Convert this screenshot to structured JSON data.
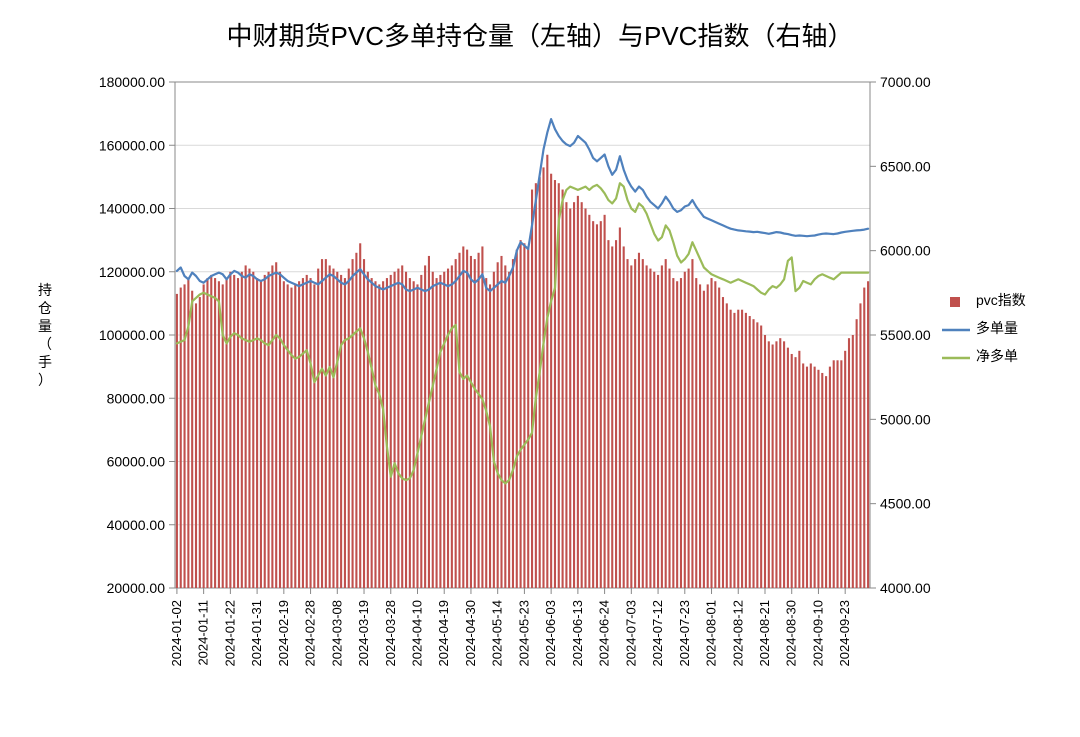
{
  "chart": {
    "type": "combo-bar-line-dual-axis",
    "title": "中财期货PVC多单持仓量（左轴）与PVC指数（右轴）",
    "title_fontsize": 26,
    "title_color": "#000000",
    "background_color": "#ffffff",
    "plot_bgcolor": "#ffffff",
    "grid_color": "#d9d9d9",
    "axis_color": "#888888",
    "tick_fontsize": 14,
    "xlabel_fontsize": 13,
    "left_axis": {
      "label": "持仓量（手）",
      "min": 20000,
      "max": 180000,
      "step": 20000,
      "decimals": 2
    },
    "right_axis": {
      "label": "",
      "min": 4000,
      "max": 7000,
      "step": 500,
      "decimals": 2
    },
    "x_tick_labels": [
      "2024-01-02",
      "2024-01-11",
      "2024-01-22",
      "2024-01-31",
      "2024-02-19",
      "2024-02-28",
      "2024-03-08",
      "2024-03-19",
      "2024-03-28",
      "2024-04-10",
      "2024-04-19",
      "2024-04-30",
      "2024-05-14",
      "2024-05-23",
      "2024-06-03",
      "2024-06-13",
      "2024-06-24",
      "2024-07-03",
      "2024-07-12",
      "2024-07-23",
      "2024-08-01",
      "2024-08-12",
      "2024-08-21",
      "2024-08-30",
      "2024-09-10",
      "2024-09-23"
    ],
    "x_tick_every": 7,
    "n_points": 182,
    "legend": {
      "items": [
        {
          "key": "pvc指数",
          "type": "bar",
          "color": "#c0504d"
        },
        {
          "key": "多单量",
          "type": "line",
          "color": "#4f81bd"
        },
        {
          "key": "净多单",
          "type": "line",
          "color": "#9bbb59"
        }
      ],
      "fontsize": 14
    },
    "series": {
      "pvc_index": {
        "name": "pvc指数",
        "type": "bar",
        "axis": "left",
        "color": "#c0504d",
        "bar_width_ratio": 0.55,
        "values": [
          113000,
          115000,
          116000,
          118000,
          114000,
          110000,
          112000,
          116000,
          118000,
          119000,
          118000,
          117000,
          116000,
          118000,
          120000,
          119000,
          118000,
          120000,
          122000,
          121000,
          120000,
          118000,
          117000,
          119000,
          120000,
          122000,
          123000,
          120000,
          117000,
          116000,
          115000,
          116000,
          117000,
          118000,
          119000,
          118000,
          116000,
          121000,
          124000,
          124000,
          122000,
          121000,
          120000,
          119000,
          118000,
          121000,
          124000,
          126000,
          129000,
          124000,
          120000,
          118000,
          117000,
          116000,
          117000,
          118000,
          119000,
          120000,
          121000,
          122000,
          120000,
          118000,
          117000,
          116000,
          119000,
          122000,
          125000,
          120000,
          118000,
          119000,
          120000,
          121000,
          122000,
          124000,
          126000,
          128000,
          127000,
          125000,
          124000,
          126000,
          128000,
          118000,
          116000,
          120000,
          123000,
          125000,
          122000,
          120000,
          124000,
          127000,
          130000,
          129000,
          128000,
          146000,
          148000,
          150000,
          153000,
          157000,
          151000,
          149000,
          148000,
          146000,
          142000,
          140000,
          142000,
          144000,
          142000,
          140000,
          138000,
          136000,
          135000,
          136000,
          138000,
          130000,
          128000,
          130000,
          134000,
          128000,
          124000,
          122000,
          124000,
          126000,
          124000,
          122000,
          121000,
          120000,
          119000,
          122000,
          124000,
          121000,
          118000,
          117000,
          118000,
          120000,
          121000,
          124000,
          118000,
          116000,
          114000,
          116000,
          118000,
          117000,
          115000,
          112000,
          110000,
          108000,
          107000,
          108000,
          108000,
          107000,
          106000,
          105000,
          104000,
          103000,
          100000,
          98000,
          97000,
          98000,
          99000,
          98000,
          96000,
          94000,
          93000,
          95000,
          91000,
          90000,
          91000,
          90000,
          89000,
          88000,
          87000,
          90000,
          92000,
          92000,
          92000,
          95000,
          99000,
          100000,
          105000,
          110000,
          115000,
          117000
        ]
      },
      "long_position": {
        "name": "多单量",
        "type": "line",
        "axis": "right",
        "color": "#4f81bd",
        "line_width": 2.2,
        "values": [
          5880,
          5900,
          5850,
          5830,
          5870,
          5850,
          5820,
          5810,
          5830,
          5850,
          5860,
          5870,
          5860,
          5830,
          5860,
          5880,
          5870,
          5850,
          5840,
          5860,
          5850,
          5830,
          5820,
          5830,
          5850,
          5860,
          5870,
          5860,
          5840,
          5820,
          5810,
          5800,
          5790,
          5800,
          5810,
          5820,
          5810,
          5800,
          5820,
          5840,
          5860,
          5850,
          5830,
          5810,
          5800,
          5820,
          5850,
          5870,
          5890,
          5860,
          5830,
          5810,
          5790,
          5780,
          5770,
          5780,
          5790,
          5800,
          5810,
          5800,
          5770,
          5760,
          5770,
          5780,
          5770,
          5760,
          5770,
          5790,
          5800,
          5810,
          5800,
          5790,
          5800,
          5820,
          5850,
          5880,
          5870,
          5830,
          5810,
          5830,
          5860,
          5780,
          5760,
          5780,
          5800,
          5820,
          5810,
          5850,
          5900,
          6000,
          6050,
          6030,
          6010,
          6150,
          6300,
          6450,
          6600,
          6700,
          6780,
          6720,
          6680,
          6650,
          6630,
          6620,
          6640,
          6680,
          6660,
          6640,
          6600,
          6550,
          6530,
          6550,
          6570,
          6500,
          6450,
          6480,
          6560,
          6480,
          6420,
          6380,
          6350,
          6380,
          6360,
          6320,
          6290,
          6270,
          6250,
          6280,
          6320,
          6290,
          6250,
          6230,
          6240,
          6262,
          6270,
          6300,
          6260,
          6230,
          6200,
          6190,
          6180,
          6170,
          6160,
          6150,
          6140,
          6130,
          6125,
          6120,
          6118,
          6115,
          6113,
          6110,
          6112,
          6108,
          6104,
          6100,
          6105,
          6110,
          6108,
          6102,
          6098,
          6092,
          6088,
          6090,
          6088,
          6086,
          6088,
          6090,
          6095,
          6100,
          6102,
          6100,
          6098,
          6102,
          6108,
          6112,
          6115,
          6118,
          6120,
          6122,
          6125,
          6130
        ]
      },
      "net_long": {
        "name": "净多单",
        "type": "line",
        "axis": "right",
        "color": "#9bbb59",
        "line_width": 2.2,
        "values": [
          5450,
          5460,
          5470,
          5550,
          5700,
          5720,
          5740,
          5750,
          5740,
          5730,
          5720,
          5700,
          5500,
          5450,
          5490,
          5510,
          5500,
          5480,
          5470,
          5460,
          5470,
          5480,
          5470,
          5450,
          5440,
          5470,
          5500,
          5480,
          5440,
          5410,
          5380,
          5360,
          5370,
          5390,
          5410,
          5330,
          5220,
          5260,
          5300,
          5260,
          5310,
          5250,
          5340,
          5440,
          5470,
          5480,
          5500,
          5520,
          5540,
          5480,
          5400,
          5300,
          5200,
          5150,
          5060,
          4840,
          4660,
          4740,
          4680,
          4650,
          4640,
          4650,
          4700,
          4800,
          4900,
          5000,
          5100,
          5200,
          5300,
          5400,
          5450,
          5500,
          5540,
          5560,
          5280,
          5240,
          5260,
          5220,
          5180,
          5150,
          5120,
          5050,
          4960,
          4750,
          4680,
          4640,
          4620,
          4640,
          4700,
          4780,
          4820,
          4850,
          4880,
          4920,
          5130,
          5280,
          5450,
          5600,
          5700,
          5780,
          6180,
          6300,
          6360,
          6380,
          6370,
          6360,
          6370,
          6380,
          6360,
          6380,
          6390,
          6370,
          6340,
          6300,
          6280,
          6310,
          6400,
          6380,
          6300,
          6250,
          6230,
          6280,
          6260,
          6220,
          6160,
          6100,
          6060,
          6080,
          6150,
          6120,
          6050,
          5970,
          5930,
          5950,
          5980,
          6050,
          6000,
          5950,
          5900,
          5880,
          5860,
          5850,
          5840,
          5830,
          5820,
          5810,
          5820,
          5830,
          5820,
          5810,
          5800,
          5790,
          5770,
          5750,
          5740,
          5770,
          5790,
          5780,
          5800,
          5830,
          5940,
          5960,
          5760,
          5780,
          5820,
          5810,
          5800,
          5830,
          5850,
          5860,
          5850,
          5840,
          5830,
          5850,
          5870,
          5870,
          5870,
          5870,
          5870,
          5870,
          5870,
          5870
        ]
      }
    }
  }
}
